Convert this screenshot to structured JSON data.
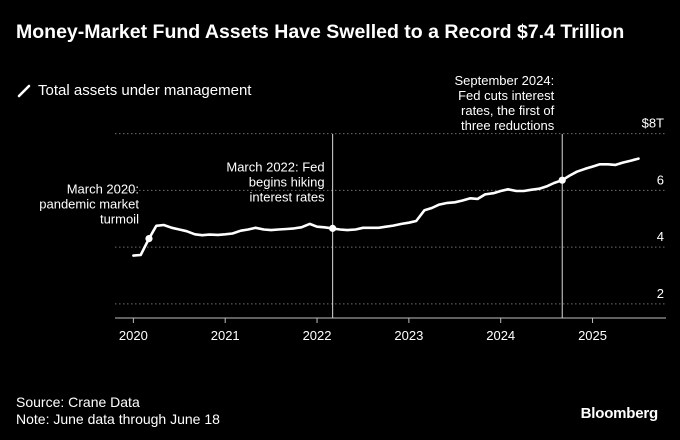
{
  "header": {
    "title": "Money-Market Fund Assets Have Swelled to a Record $7.4 Trillion"
  },
  "legend": {
    "label": "Total assets under management"
  },
  "footer": {
    "source": "Source: Crane Data",
    "note": "Note: June data through June 18",
    "brand": "Bloomberg"
  },
  "colors": {
    "background": "#000000",
    "line": "#ffffff",
    "grid": "#6e6e6e",
    "text": "#ffffff"
  },
  "chart_data": {
    "type": "line",
    "title": "Money-Market Fund Assets Have Swelled to a Record $7.4 Trillion",
    "xlabel": "",
    "ylabel": "",
    "ylim": [
      1.5,
      8.2
    ],
    "xlim": [
      2019.8,
      2025.8
    ],
    "y_ticks": [
      {
        "value": 2,
        "label": "2"
      },
      {
        "value": 4,
        "label": "4"
      },
      {
        "value": 6,
        "label": "6"
      },
      {
        "value": 8,
        "label": "$8T"
      }
    ],
    "x_ticks": [
      {
        "value": 2020,
        "label": "2020"
      },
      {
        "value": 2021,
        "label": "2021"
      },
      {
        "value": 2022,
        "label": "2022"
      },
      {
        "value": 2023,
        "label": "2023"
      },
      {
        "value": 2024,
        "label": "2024"
      },
      {
        "value": 2025,
        "label": "2025"
      }
    ],
    "grid": "horizontal dotted",
    "series": [
      {
        "name": "Total assets under management",
        "points": [
          [
            2020.0,
            3.7
          ],
          [
            2020.08,
            3.72
          ],
          [
            2020.17,
            4.3
          ],
          [
            2020.25,
            4.75
          ],
          [
            2020.33,
            4.78
          ],
          [
            2020.42,
            4.68
          ],
          [
            2020.5,
            4.62
          ],
          [
            2020.58,
            4.56
          ],
          [
            2020.67,
            4.45
          ],
          [
            2020.75,
            4.42
          ],
          [
            2020.83,
            4.44
          ],
          [
            2020.92,
            4.43
          ],
          [
            2021.0,
            4.45
          ],
          [
            2021.08,
            4.48
          ],
          [
            2021.17,
            4.58
          ],
          [
            2021.25,
            4.62
          ],
          [
            2021.33,
            4.68
          ],
          [
            2021.42,
            4.62
          ],
          [
            2021.5,
            4.6
          ],
          [
            2021.58,
            4.62
          ],
          [
            2021.67,
            4.64
          ],
          [
            2021.75,
            4.66
          ],
          [
            2021.83,
            4.7
          ],
          [
            2021.92,
            4.82
          ],
          [
            2022.0,
            4.72
          ],
          [
            2022.08,
            4.7
          ],
          [
            2022.17,
            4.66
          ],
          [
            2022.25,
            4.62
          ],
          [
            2022.33,
            4.6
          ],
          [
            2022.42,
            4.62
          ],
          [
            2022.5,
            4.68
          ],
          [
            2022.58,
            4.68
          ],
          [
            2022.67,
            4.68
          ],
          [
            2022.75,
            4.72
          ],
          [
            2022.83,
            4.76
          ],
          [
            2022.92,
            4.82
          ],
          [
            2023.0,
            4.86
          ],
          [
            2023.08,
            4.92
          ],
          [
            2023.17,
            5.3
          ],
          [
            2023.25,
            5.38
          ],
          [
            2023.33,
            5.5
          ],
          [
            2023.42,
            5.56
          ],
          [
            2023.5,
            5.58
          ],
          [
            2023.58,
            5.64
          ],
          [
            2023.67,
            5.72
          ],
          [
            2023.75,
            5.7
          ],
          [
            2023.83,
            5.86
          ],
          [
            2023.92,
            5.9
          ],
          [
            2024.0,
            5.98
          ],
          [
            2024.08,
            6.04
          ],
          [
            2024.17,
            5.98
          ],
          [
            2024.25,
            5.98
          ],
          [
            2024.33,
            6.02
          ],
          [
            2024.42,
            6.06
          ],
          [
            2024.5,
            6.14
          ],
          [
            2024.58,
            6.26
          ],
          [
            2024.67,
            6.36
          ],
          [
            2024.75,
            6.52
          ],
          [
            2024.83,
            6.66
          ],
          [
            2024.92,
            6.76
          ],
          [
            2025.0,
            6.84
          ],
          [
            2025.08,
            6.92
          ],
          [
            2025.17,
            6.92
          ],
          [
            2025.25,
            6.9
          ],
          [
            2025.33,
            6.98
          ],
          [
            2025.42,
            7.05
          ],
          [
            2025.5,
            7.12
          ]
        ]
      }
    ],
    "annotations": [
      {
        "x": 2020.17,
        "y": 4.3,
        "lines": [
          "March 2020:",
          "pandemic market",
          "turmoil"
        ],
        "vline": false
      },
      {
        "x": 2022.17,
        "y": 4.66,
        "lines": [
          "March 2022: Fed",
          "begins hiking",
          "interest rates"
        ],
        "vline": true
      },
      {
        "x": 2024.67,
        "y": 6.36,
        "lines": [
          "September 2024:",
          "Fed cuts interest",
          "rates, the first of",
          "three reductions"
        ],
        "vline": true
      }
    ]
  }
}
